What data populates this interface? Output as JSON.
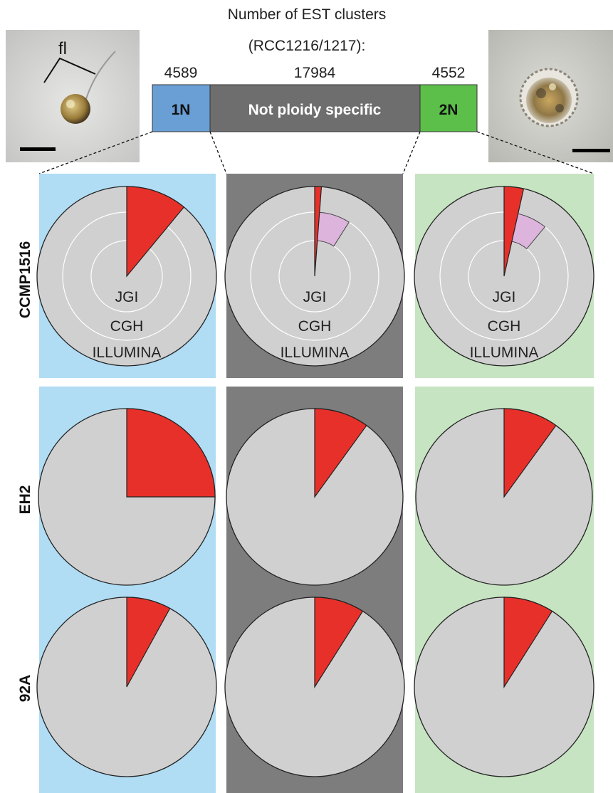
{
  "header": {
    "title_line1": "Number of EST clusters",
    "title_line2": "(RCC1216/1217):"
  },
  "bar": {
    "segments": [
      {
        "key": "haploid",
        "label": "1N",
        "count": "4589",
        "color": "#6a9fd6"
      },
      {
        "key": "nonspecific",
        "label": "Not ploidy specific",
        "count": "17984",
        "color": "#6e6e6e"
      },
      {
        "key": "diploid",
        "label": "2N",
        "count": "4552",
        "color": "#5bbf4a"
      }
    ]
  },
  "micrographs": {
    "left_label": "fl"
  },
  "columns": [
    {
      "key": "haploid",
      "panel_color": "#b0dcf4"
    },
    {
      "key": "nonspecific",
      "panel_color": "#7d7d7d"
    },
    {
      "key": "diploid",
      "panel_color": "#c6e4c1"
    }
  ],
  "rows": [
    {
      "label": "CCMP1516",
      "rings": [
        "JGI",
        "CGH",
        "ILLUMINA"
      ]
    },
    {
      "label": "EH2"
    },
    {
      "label": "92A"
    }
  ],
  "colors": {
    "pie_base": "#d0d0d0",
    "red_wedge": "#e8302a",
    "pink_wedge": "#dcb4dc"
  },
  "chart_data": {
    "type": "pie",
    "categories": [
      "1N",
      "Not ploidy specific",
      "2N"
    ],
    "series": [
      {
        "name": "CCMP1516",
        "values": [
          0.11,
          0.012,
          0.035
        ],
        "secondary_values": [
          0.11,
          0.09,
          0.11
        ]
      },
      {
        "name": "EH2",
        "values": [
          0.25,
          0.1,
          0.1
        ]
      },
      {
        "name": "92A",
        "values": [
          0.08,
          0.09,
          0.09
        ]
      }
    ]
  }
}
